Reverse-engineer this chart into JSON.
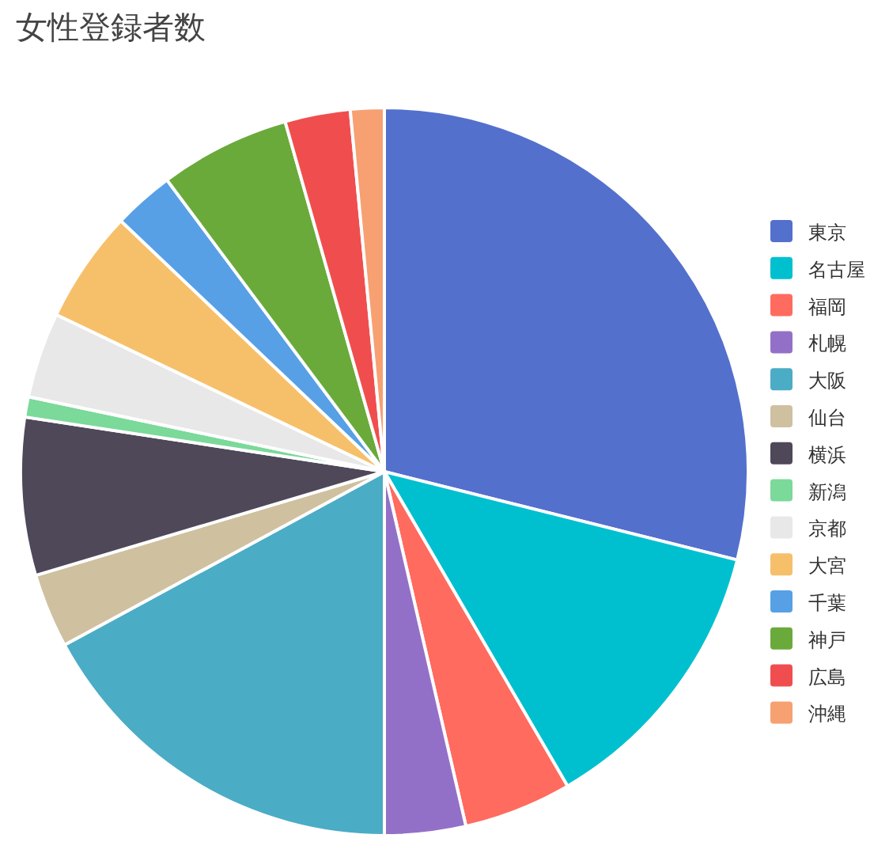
{
  "chart_data": {
    "type": "pie",
    "title": "女性登録者数",
    "categories": [
      "東京",
      "名古屋",
      "福岡",
      "札幌",
      "大阪",
      "仙台",
      "横浜",
      "新潟",
      "京都",
      "大宮",
      "千葉",
      "神戸",
      "広島",
      "沖縄"
    ],
    "values": [
      28.9,
      12.7,
      4.8,
      3.6,
      17.1,
      3.3,
      7.0,
      0.9,
      3.8,
      5.0,
      2.7,
      5.8,
      2.9,
      1.5
    ],
    "colors": [
      "#5470cd",
      "#00c0d0",
      "#ff6b5e",
      "#9370c8",
      "#4bacc6",
      "#cfc0a0",
      "#4f4859",
      "#7bd99a",
      "#e8e8e8",
      "#f6c06a",
      "#57a0e6",
      "#6aaa3a",
      "#f04e4e",
      "#f7a072"
    ],
    "legend": "right"
  }
}
